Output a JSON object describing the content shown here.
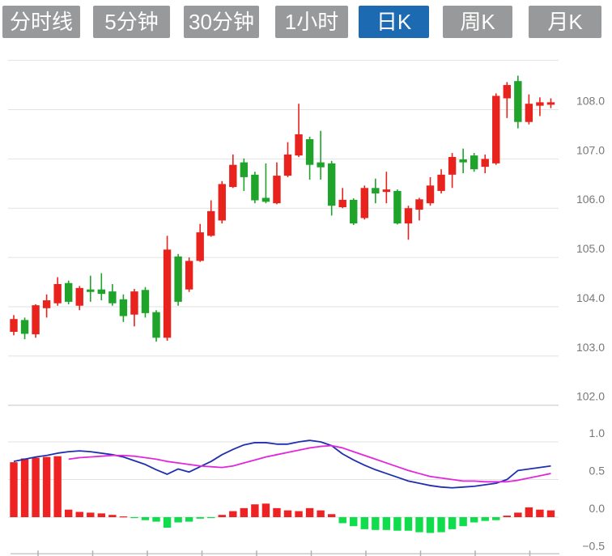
{
  "tabs": [
    {
      "label": "分时线",
      "active": false
    },
    {
      "label": "5分钟",
      "active": false
    },
    {
      "label": "30分钟",
      "active": false
    },
    {
      "label": "1小时",
      "active": false
    },
    {
      "label": "日K",
      "active": true
    },
    {
      "label": "周K",
      "active": false
    },
    {
      "label": "月K",
      "active": false
    }
  ],
  "colors": {
    "tab_bg": "#98999a",
    "tab_active_bg": "#1c6bb2",
    "tab_text": "#ffffff",
    "candle_up": "#e8231d",
    "candle_down": "#1fa32a",
    "hist_up": "#ee2222",
    "hist_down": "#0fdd4b",
    "dif_line": "#1f2fae",
    "dea_line": "#e126dd",
    "grid": "#e2e2e2",
    "grid_bottom": "#d9d9d9",
    "axis_line": "#c9c9c9",
    "tick": "#b0b0b0",
    "axis_text": "#787878",
    "background": "#ffffff"
  },
  "price_axis": {
    "labels": [
      "108.0",
      "107.0",
      "106.0",
      "105.0",
      "104.0",
      "103.0",
      "102.0"
    ],
    "values": [
      108,
      107,
      106,
      105,
      104,
      103,
      102
    ],
    "unlabeled_top_value": 109
  },
  "macd_axis": {
    "labels": [
      "1.0",
      "0.5",
      "0.0",
      "−0.5"
    ],
    "values": [
      1.0,
      0.5,
      0.0,
      -0.5
    ]
  },
  "chart_data": {
    "type": "candlestick_with_macd",
    "title": "",
    "legend_position": "none",
    "grid": true,
    "price_panel": {
      "ylabel": "price",
      "ylim": [
        101.5,
        109.0
      ],
      "gridline_values": [
        109,
        108,
        107,
        106,
        105,
        104,
        103,
        102
      ],
      "candles_ohlc": [
        [
          103.49,
          103.83,
          103.42,
          103.75
        ],
        [
          103.73,
          103.78,
          103.34,
          103.45
        ],
        [
          103.44,
          104.05,
          103.37,
          104.03
        ],
        [
          103.97,
          104.25,
          103.78,
          104.13
        ],
        [
          104.07,
          104.6,
          104.02,
          104.46
        ],
        [
          104.48,
          104.53,
          104.05,
          104.1
        ],
        [
          104.02,
          104.42,
          103.93,
          104.38
        ],
        [
          104.35,
          104.63,
          104.1,
          104.3
        ],
        [
          104.35,
          104.68,
          104.13,
          104.26
        ],
        [
          104.31,
          104.46,
          104.02,
          104.07
        ],
        [
          104.15,
          104.25,
          103.69,
          103.81
        ],
        [
          103.84,
          104.36,
          103.6,
          104.31
        ],
        [
          104.34,
          104.4,
          103.78,
          103.87
        ],
        [
          103.89,
          103.93,
          103.29,
          103.37
        ],
        [
          103.37,
          105.44,
          103.31,
          105.16
        ],
        [
          105.02,
          105.07,
          104.02,
          104.1
        ],
        [
          104.35,
          105.0,
          104.3,
          104.93
        ],
        [
          104.93,
          105.68,
          104.91,
          105.51
        ],
        [
          105.44,
          106.16,
          105.42,
          105.94
        ],
        [
          105.75,
          106.55,
          105.69,
          106.49
        ],
        [
          106.43,
          107.09,
          106.41,
          106.88
        ],
        [
          106.93,
          107.01,
          106.35,
          106.63
        ],
        [
          106.68,
          106.74,
          106.1,
          106.16
        ],
        [
          106.21,
          106.91,
          106.1,
          106.13
        ],
        [
          106.1,
          106.93,
          106.08,
          106.66
        ],
        [
          106.66,
          107.34,
          106.63,
          107.09
        ],
        [
          107.07,
          108.12,
          107.04,
          107.5
        ],
        [
          107.4,
          107.45,
          106.58,
          106.88
        ],
        [
          106.93,
          107.57,
          106.58,
          106.83
        ],
        [
          106.91,
          106.96,
          105.85,
          106.05
        ],
        [
          106.02,
          106.41,
          106.0,
          106.17
        ],
        [
          106.17,
          106.2,
          105.66,
          105.69
        ],
        [
          105.8,
          106.46,
          105.77,
          106.41
        ],
        [
          106.41,
          106.6,
          106.1,
          106.3
        ],
        [
          106.33,
          106.74,
          106.1,
          106.38
        ],
        [
          106.35,
          106.38,
          105.67,
          105.69
        ],
        [
          105.69,
          106.05,
          105.36,
          106.0
        ],
        [
          105.97,
          106.21,
          105.75,
          106.18
        ],
        [
          106.1,
          106.63,
          106.05,
          106.46
        ],
        [
          106.35,
          106.79,
          106.3,
          106.68
        ],
        [
          106.68,
          107.12,
          106.41,
          107.04
        ],
        [
          106.99,
          107.21,
          106.71,
          106.93
        ],
        [
          107.07,
          107.12,
          106.74,
          106.79
        ],
        [
          106.84,
          107.09,
          106.71,
          107.0
        ],
        [
          106.91,
          108.33,
          106.88,
          108.28
        ],
        [
          108.23,
          108.56,
          107.83,
          108.5
        ],
        [
          108.58,
          108.69,
          107.62,
          107.75
        ],
        [
          107.75,
          108.31,
          107.7,
          108.12
        ],
        [
          108.08,
          108.25,
          107.87,
          108.15
        ],
        [
          108.1,
          108.23,
          108.03,
          108.15
        ]
      ]
    },
    "macd_panel": {
      "ylabel": "MACD",
      "ylim": [
        -0.5,
        1.05
      ],
      "gridline_values": [
        1.0,
        0.5,
        0.0,
        -0.5
      ],
      "histogram": [
        0.73,
        0.78,
        0.79,
        0.8,
        0.81,
        0.1,
        0.07,
        0.06,
        0.05,
        0.03,
        0.01,
        -0.01,
        -0.04,
        -0.06,
        -0.14,
        -0.07,
        -0.06,
        -0.02,
        -0.01,
        0.03,
        0.08,
        0.12,
        0.17,
        0.18,
        0.12,
        0.09,
        0.08,
        0.12,
        0.09,
        0.04,
        -0.08,
        -0.12,
        -0.16,
        -0.17,
        -0.17,
        -0.18,
        -0.18,
        -0.2,
        -0.21,
        -0.2,
        -0.16,
        -0.12,
        -0.07,
        -0.05,
        -0.04,
        0.02,
        0.06,
        0.13,
        0.1,
        0.09
      ],
      "dif": [
        0.74,
        0.77,
        0.8,
        0.82,
        0.85,
        0.87,
        0.88,
        0.87,
        0.85,
        0.83,
        0.8,
        0.75,
        0.7,
        0.63,
        0.57,
        0.64,
        0.6,
        0.67,
        0.74,
        0.83,
        0.9,
        0.96,
        0.99,
        0.99,
        0.97,
        0.97,
        1.0,
        1.02,
        1.0,
        0.95,
        0.84,
        0.76,
        0.69,
        0.63,
        0.58,
        0.53,
        0.48,
        0.45,
        0.42,
        0.4,
        0.39,
        0.4,
        0.41,
        0.43,
        0.45,
        0.5,
        0.62,
        0.64,
        0.66,
        0.68
      ],
      "dea": [
        null,
        null,
        null,
        null,
        null,
        0.77,
        0.79,
        0.8,
        0.81,
        0.82,
        0.82,
        0.81,
        0.79,
        0.77,
        0.74,
        0.72,
        0.7,
        0.68,
        0.67,
        0.66,
        0.68,
        0.72,
        0.76,
        0.8,
        0.83,
        0.86,
        0.89,
        0.92,
        0.94,
        0.95,
        0.92,
        0.87,
        0.82,
        0.77,
        0.72,
        0.67,
        0.62,
        0.58,
        0.54,
        0.52,
        0.5,
        0.48,
        0.48,
        0.47,
        0.47,
        0.47,
        0.49,
        0.52,
        0.55,
        0.58
      ]
    }
  }
}
